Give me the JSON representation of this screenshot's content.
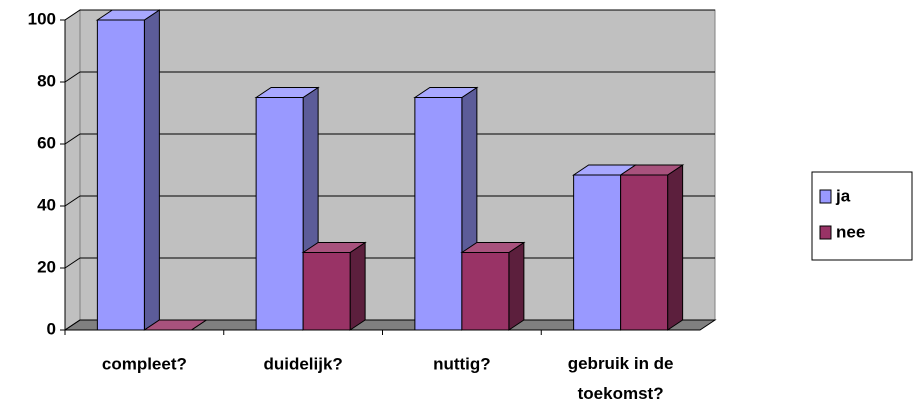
{
  "chart_data": {
    "type": "bar3d",
    "categories": [
      "compleet?",
      "duidelijk?",
      "nuttig?",
      "gebruik in de toekomst?"
    ],
    "series": [
      {
        "name": "ja",
        "color": "#9999ff",
        "values": [
          100,
          75,
          75,
          50
        ]
      },
      {
        "name": "nee",
        "color": "#993366",
        "values": [
          0,
          25,
          25,
          50
        ]
      }
    ],
    "ylim": [
      0,
      100
    ],
    "yticks": [
      0,
      20,
      40,
      60,
      80,
      100
    ],
    "grid": true,
    "legend": "right"
  }
}
